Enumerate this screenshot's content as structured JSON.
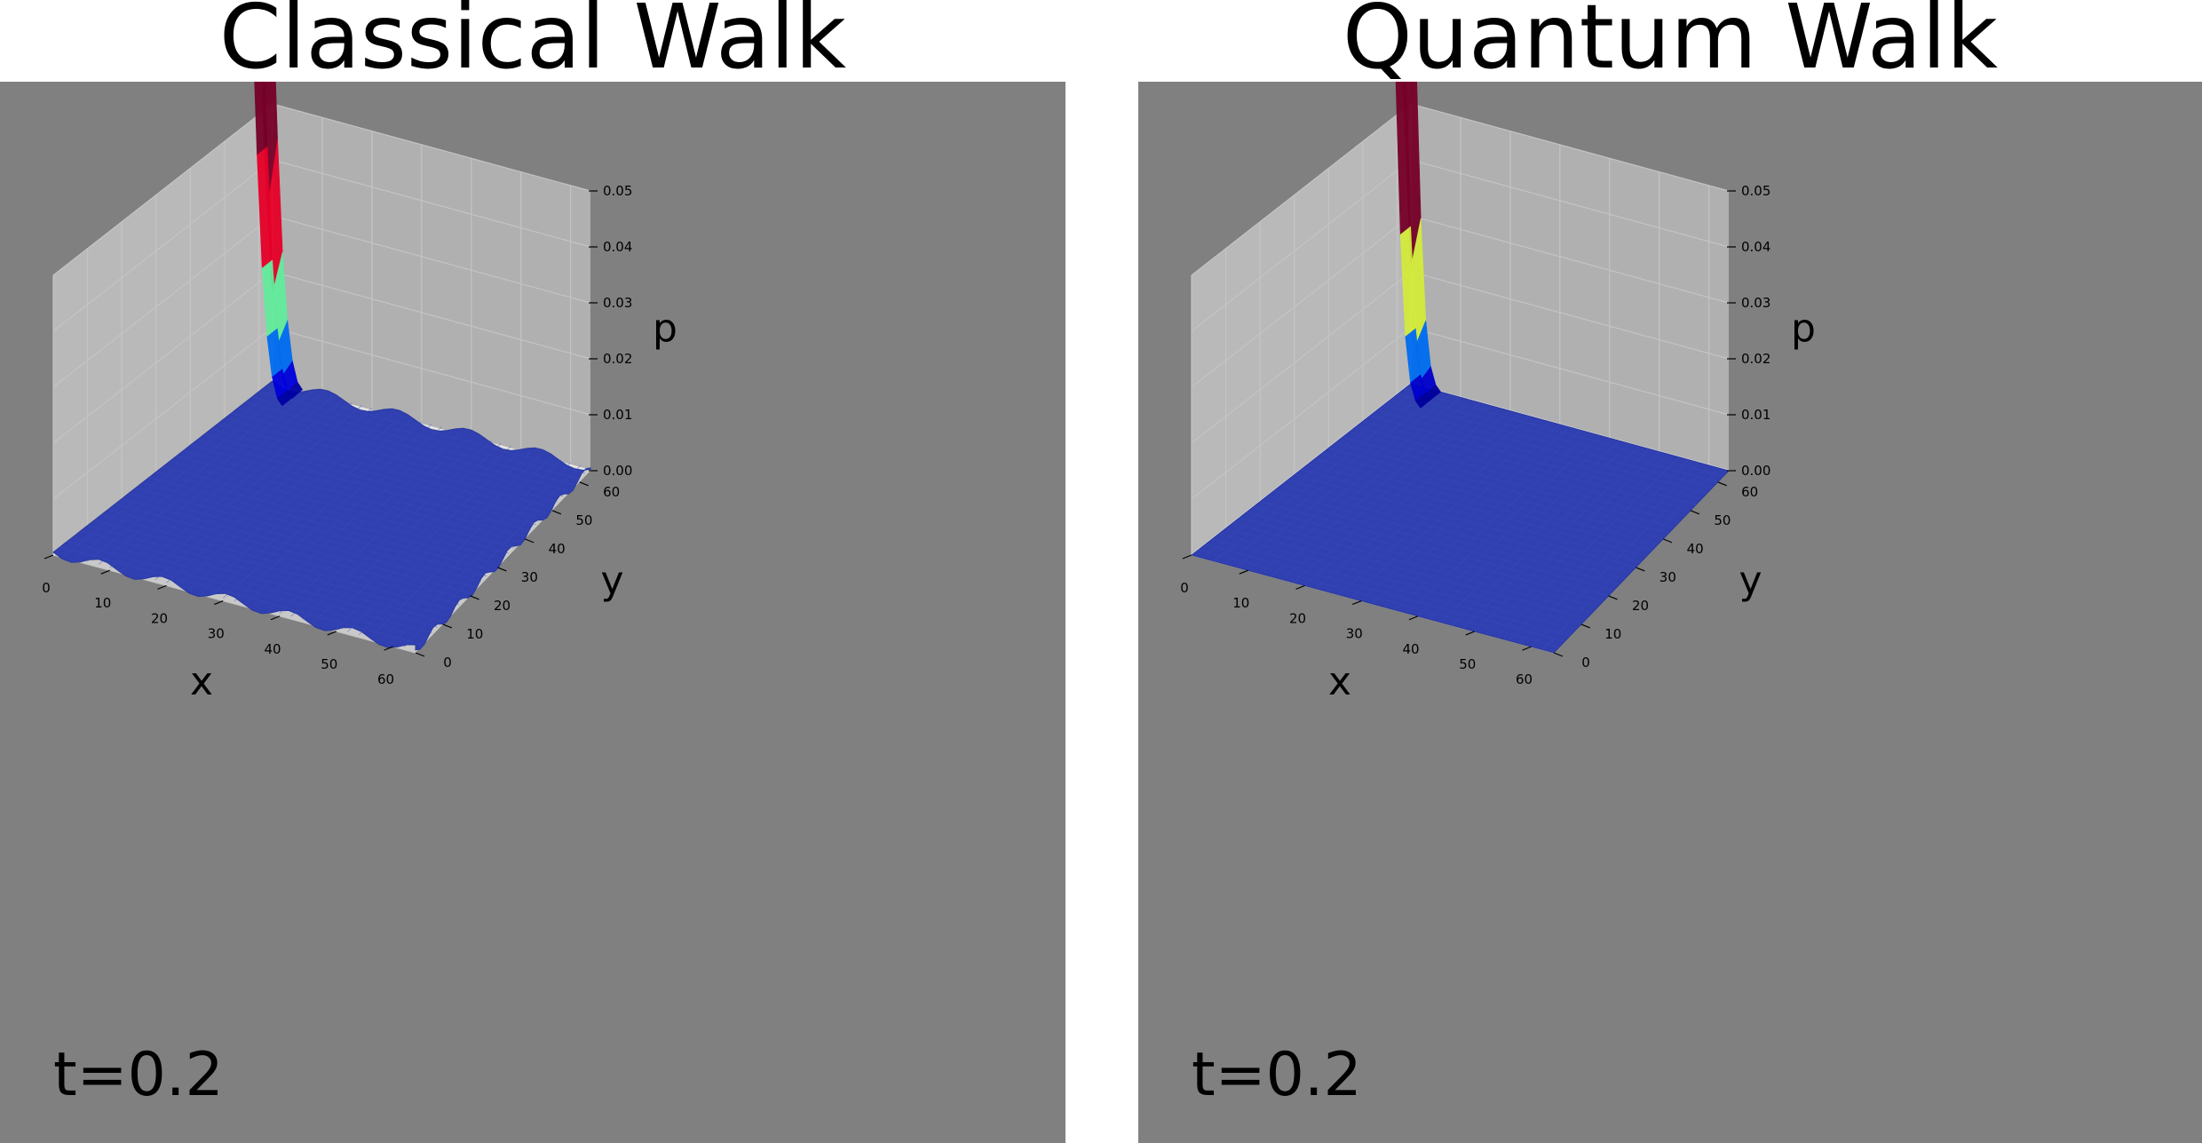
{
  "chart_data": [
    {
      "type": "surface3d",
      "title": "Classical Walk",
      "xlabel": "x",
      "ylabel": "y",
      "zlabel": "p",
      "x_ticks": [
        0,
        10,
        20,
        30,
        40,
        50,
        60
      ],
      "y_ticks": [
        0,
        10,
        20,
        30,
        40,
        50,
        60
      ],
      "z_ticks": [
        "0.00",
        "0.01",
        "0.02",
        "0.03",
        "0.04",
        "0.05"
      ],
      "xlim": [
        0,
        64
      ],
      "ylim": [
        0,
        64
      ],
      "zlim": [
        0,
        0.05
      ],
      "annotation": "t=0.2",
      "colormap": "jet",
      "peak_at": {
        "x": 0,
        "y": 64
      },
      "peak_profile_by_x": [
        {
          "x": 0,
          "p": 0.07
        },
        {
          "x": 1,
          "p": 0.044
        },
        {
          "x": 2,
          "p": 0.024
        },
        {
          "x": 3,
          "p": 0.012
        },
        {
          "x": 4,
          "p": 0.005
        },
        {
          "x": 5,
          "p": 0.0015
        },
        {
          "x": 6,
          "p": 0.0004
        }
      ],
      "baseline_p": 0.0005,
      "surface_ripple": true
    },
    {
      "type": "surface3d",
      "title": "Quantum Walk",
      "xlabel": "x",
      "ylabel": "y",
      "zlabel": "p",
      "x_ticks": [
        0,
        10,
        20,
        30,
        40,
        50,
        60
      ],
      "y_ticks": [
        0,
        10,
        20,
        30,
        40,
        50,
        60
      ],
      "z_ticks": [
        "0.00",
        "0.01",
        "0.02",
        "0.03",
        "0.04",
        "0.05"
      ],
      "xlim": [
        0,
        64
      ],
      "ylim": [
        0,
        64
      ],
      "zlim": [
        0,
        0.05
      ],
      "annotation": "t=0.2",
      "colormap": "jet",
      "peak_at": {
        "x": 0,
        "y": 64
      },
      "peak_profile_by_x": [
        {
          "x": 0,
          "p": 0.08
        },
        {
          "x": 1,
          "p": 0.06
        },
        {
          "x": 2,
          "p": 0.03
        },
        {
          "x": 3,
          "p": 0.012
        },
        {
          "x": 4,
          "p": 0.004
        },
        {
          "x": 5,
          "p": 0.001
        },
        {
          "x": 6,
          "p": 0.0
        }
      ],
      "baseline_p": 0.0,
      "surface_ripple": false
    }
  ],
  "colors": {
    "panel_bg": "#808080",
    "pane_back": "#b9b9b9",
    "pane_side": "#b0b0b0",
    "pane_floor": "#c9c9c9",
    "pane_edge": "#e8e8e8",
    "grid": "#c4c4c4",
    "surface": "#3040b0"
  }
}
